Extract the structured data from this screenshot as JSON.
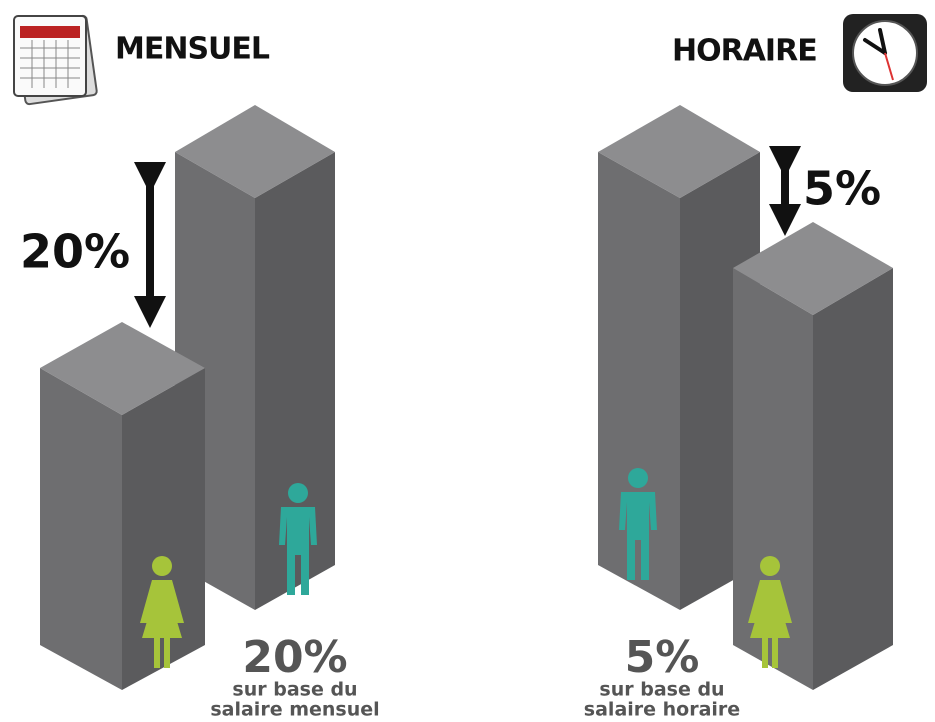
{
  "left": {
    "heading": "MENSUEL",
    "gap": "20%",
    "caption": {
      "value": "20%",
      "line1": "sur base du",
      "line2": "salaire mensuel"
    }
  },
  "right": {
    "heading": "HORAIRE",
    "gap": "5%",
    "caption": {
      "value": "5%",
      "line1": "sur base du",
      "line2": "salaire horaire"
    }
  }
}
